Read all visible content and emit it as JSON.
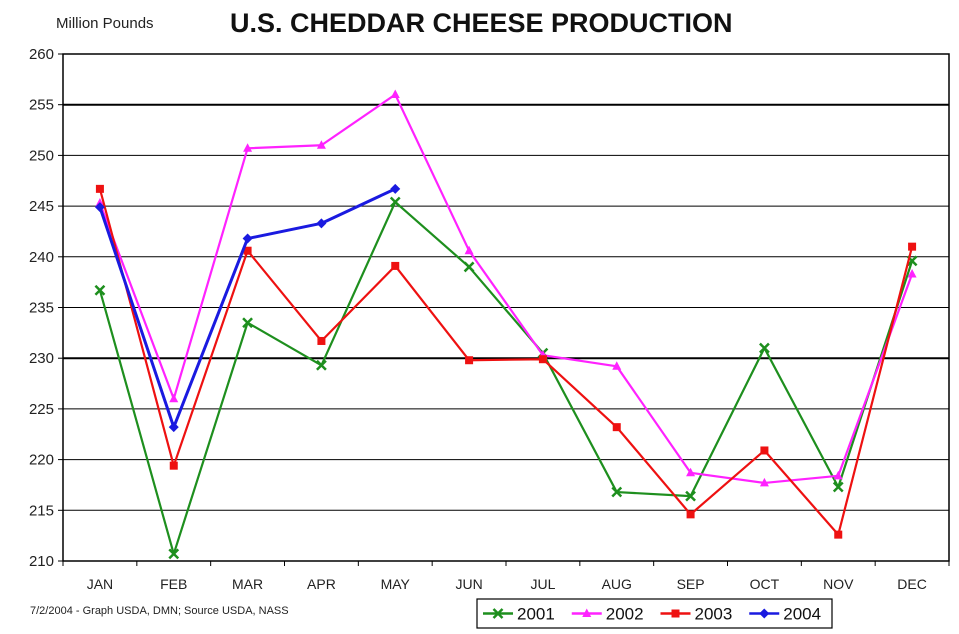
{
  "chart_data": {
    "type": "line",
    "title": "U.S. CHEDDAR CHEESE PRODUCTION",
    "ylabel": "Million Pounds",
    "xlabel": "",
    "footnote": "7/2/2004 - Graph USDA, DMN; Source USDA, NASS",
    "categories": [
      "JAN",
      "FEB",
      "MAR",
      "APR",
      "MAY",
      "JUN",
      "JUL",
      "AUG",
      "SEP",
      "OCT",
      "NOV",
      "DEC"
    ],
    "ylim": [
      210,
      260
    ],
    "yticks": [
      "210",
      "215",
      "220",
      "225",
      "230",
      "235",
      "240",
      "245",
      "250",
      "255",
      "260"
    ],
    "grid": true,
    "legend_position": "bottom",
    "series": [
      {
        "name": "2001",
        "color": "#1e8f1e",
        "marker": "x",
        "values": [
          236.7,
          210.7,
          233.5,
          229.3,
          245.4,
          239.0,
          230.5,
          216.8,
          216.4,
          231.0,
          217.3,
          239.6
        ]
      },
      {
        "name": "2002",
        "color": "#ff22ff",
        "marker": "triangle",
        "values": [
          245.3,
          226.0,
          250.7,
          251.0,
          256.0,
          240.6,
          230.3,
          229.2,
          218.7,
          217.7,
          218.4,
          238.3
        ]
      },
      {
        "name": "2003",
        "color": "#ee1111",
        "marker": "square",
        "values": [
          246.7,
          219.4,
          240.6,
          231.7,
          239.1,
          229.8,
          229.9,
          223.2,
          214.6,
          220.9,
          212.6,
          241.0
        ]
      },
      {
        "name": "2004",
        "color": "#1a1ae0",
        "marker": "diamond",
        "values": [
          244.9,
          223.2,
          241.8,
          243.3,
          246.7,
          null,
          null,
          null,
          null,
          null,
          null,
          null
        ]
      }
    ]
  }
}
